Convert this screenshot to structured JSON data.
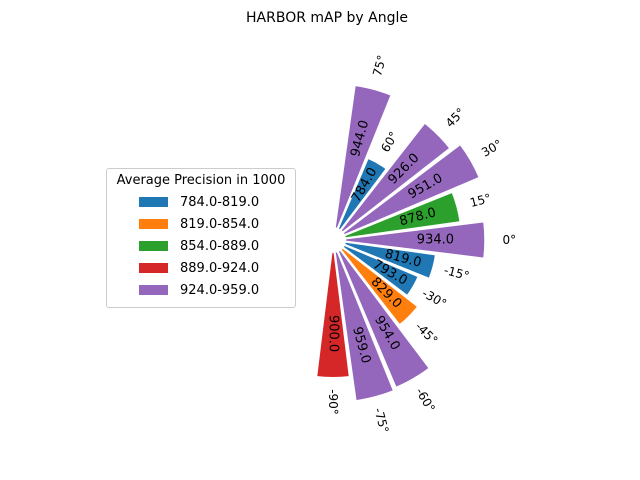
{
  "chart_data": {
    "type": "polar-bar",
    "title": "HARBOR mAP by Angle",
    "categories": [
      "-90°",
      "-75°",
      "-60°",
      "-45°",
      "-30°",
      "-15°",
      "0°",
      "15°",
      "30°",
      "45°",
      "60°",
      "75°"
    ],
    "angles_deg": [
      -90,
      -75,
      -60,
      -45,
      -30,
      -15,
      0,
      15,
      30,
      45,
      60,
      75
    ],
    "values": [
      900.0,
      959.0,
      954.0,
      829.0,
      793.0,
      819.0,
      934.0,
      878.0,
      951.0,
      926.0,
      784.0,
      944.0
    ],
    "value_labels": [
      "900.0",
      "959.0",
      "954.0",
      "829.0",
      "793.0",
      "819.0",
      "934.0",
      "878.0",
      "951.0",
      "926.0",
      "784.0",
      "944.0"
    ],
    "bar_colors": [
      "#d62728",
      "#9467bd",
      "#9467bd",
      "#ff7f0e",
      "#1f77b4",
      "#1f77b4",
      "#9467bd",
      "#2ca02c",
      "#9467bd",
      "#9467bd",
      "#1f77b4",
      "#9467bd"
    ],
    "legend": {
      "title": "Average Precision in 1000",
      "placement": "left",
      "entries": [
        {
          "label": "784.0-819.0",
          "color": "#1f77b4"
        },
        {
          "label": "819.0-854.0",
          "color": "#ff7f0e"
        },
        {
          "label": "854.0-889.0",
          "color": "#2ca02c"
        },
        {
          "label": "889.0-924.0",
          "color": "#d62728"
        },
        {
          "label": "924.0-959.0",
          "color": "#9467bd"
        }
      ]
    },
    "grid": false
  }
}
